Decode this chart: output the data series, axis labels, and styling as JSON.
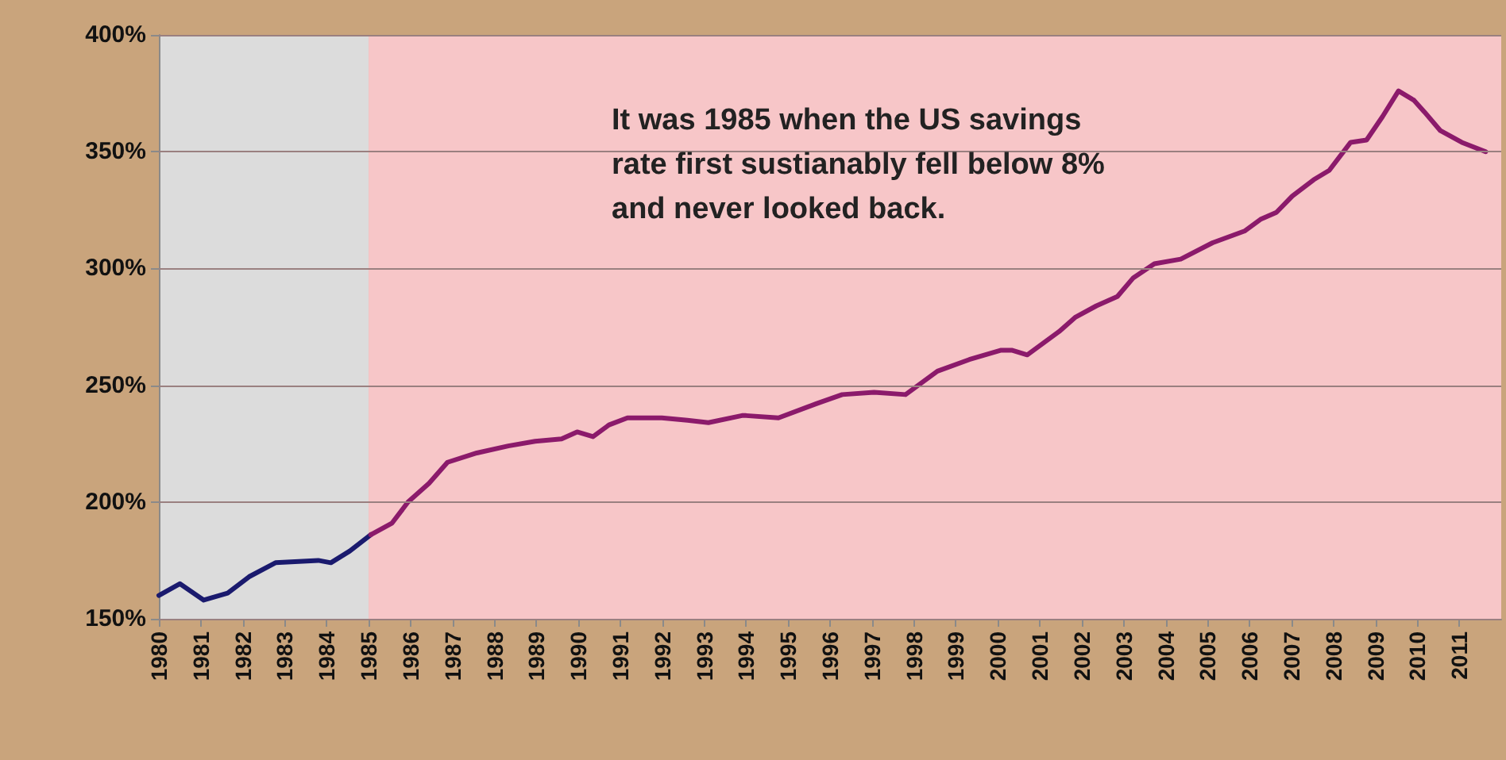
{
  "chart_data": {
    "type": "line",
    "annotations": [
      "It was 1985 when the US savings\nrate first sustianably fell below 8%\nand never looked back."
    ],
    "xlim": [
      1980,
      2012
    ],
    "xticks": [
      1980,
      1981,
      1982,
      1983,
      1984,
      1985,
      1986,
      1987,
      1988,
      1989,
      1990,
      1991,
      1992,
      1993,
      1994,
      1995,
      1996,
      1997,
      1998,
      1999,
      2000,
      2001,
      2002,
      2003,
      2004,
      2005,
      2006,
      2007,
      2008,
      2009,
      2010,
      2011
    ],
    "ylim": [
      150,
      400
    ],
    "yticks": [
      {
        "value": 150,
        "label": "150%"
      },
      {
        "value": 200,
        "label": "200%"
      },
      {
        "value": 250,
        "label": "250%"
      },
      {
        "value": 300,
        "label": "300%"
      },
      {
        "value": 350,
        "label": "350%"
      },
      {
        "value": 400,
        "label": "400%"
      }
    ],
    "grid": "y",
    "marker": "none",
    "line_style": "solid",
    "bands": [
      {
        "axis": "x",
        "from": 1980,
        "to": 1985,
        "color": "#dcdcdc"
      },
      {
        "axis": "x",
        "from": 1985,
        "to": 2012,
        "color": "#f7c6c8"
      }
    ],
    "series": [
      {
        "color": "#1a1a6e",
        "x": [
          1980,
          1980.5,
          1981.07,
          1981.64,
          1982.15,
          1982.78,
          1983.8,
          1984.1,
          1984.55,
          1985.05
        ],
        "values": [
          160,
          165,
          158,
          161,
          168,
          174,
          175,
          174,
          179,
          186
        ]
      },
      {
        "color": "#8b1a6b",
        "x": [
          1985.05,
          1985.56,
          1985.94,
          1986.44,
          1986.88,
          1987.58,
          1988.33,
          1988.97,
          1989.6,
          1989.97,
          1990.35,
          1990.73,
          1991.17,
          1991.99,
          1992.6,
          1993.1,
          1993.9,
          1994.0,
          1994.77,
          1995.66,
          1996.29,
          1997.05,
          1997.8,
          1998.56,
          1999.32,
          2000.08,
          2000.33,
          2000.7,
          2001.08,
          2001.46,
          2001.84,
          2002.35,
          2002.85,
          2003.23,
          2003.73,
          2004.36,
          2005.12,
          2005.88,
          2006.26,
          2006.64,
          2007.02,
          2007.53,
          2007.9,
          2008.41,
          2008.79,
          2009.17,
          2009.55,
          2009.92,
          2010.17,
          2010.55,
          2011.06,
          2011.63
        ],
        "values": [
          186,
          191,
          200,
          208,
          217,
          221,
          224,
          226,
          227,
          230,
          228,
          233,
          236,
          236,
          235,
          234,
          237,
          237,
          236,
          242,
          246,
          247,
          246,
          256,
          261,
          265,
          265,
          263,
          268,
          273,
          279,
          284,
          288,
          296,
          302,
          304,
          311,
          316,
          321,
          324,
          331,
          338,
          342,
          354,
          355,
          365,
          376,
          372,
          367,
          359,
          354,
          350
        ]
      }
    ]
  }
}
